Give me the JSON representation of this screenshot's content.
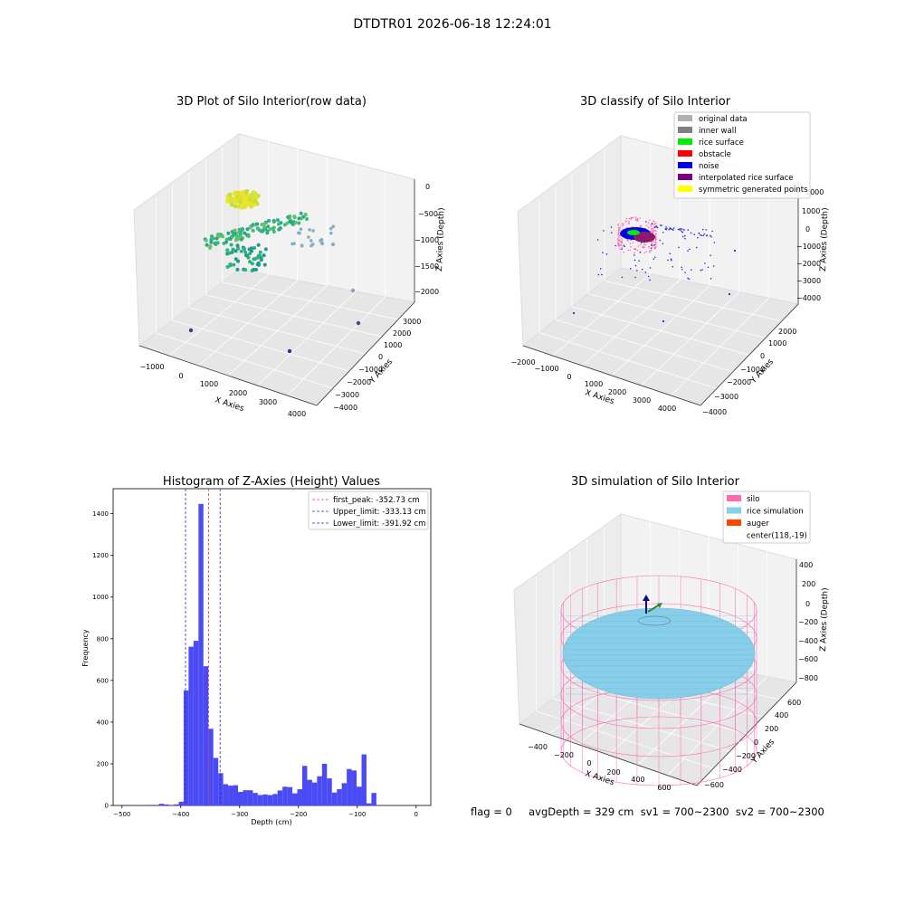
{
  "figure_title": "DTDTR01 2026-06-18 12:24:01",
  "footer_text": "flag = 0     avgDepth = 329 cm  sv1 = 700~2300  sv2 = 700~2300",
  "colors": {
    "hist_bar": "#4b4bf5",
    "first_peak": "#e53b3b",
    "limits": "#2a2ad0",
    "silo": "#ff69b4",
    "rice_simulation": "#87ceeb",
    "auger": "#ff4500"
  },
  "chart_data": [
    {
      "type": "scatter3d",
      "title": "3D Plot of Silo Interior(row data)",
      "xlabel": "X Axies",
      "ylabel": "Y Axies",
      "zlabel": "Z Axies (Depth)",
      "x_ticks": [
        "−1000",
        "0",
        "1000",
        "2000",
        "3000",
        "4000"
      ],
      "y_ticks": [
        "−4000",
        "−3000",
        "−2000",
        "−1000",
        "0",
        "1000",
        "2000",
        "3000"
      ],
      "z_ticks": [
        "0",
        "−500",
        "−1000",
        "−1500",
        "−2000"
      ],
      "colormap": "viridis"
    },
    {
      "type": "scatter3d",
      "title": "3D classify of Silo Interior",
      "xlabel": "X Axies",
      "ylabel": "Y Axies",
      "zlabel": "Z Axies (Depth)",
      "x_ticks": [
        "−2000",
        "−1000",
        "0",
        "1000",
        "2000",
        "3000",
        "4000"
      ],
      "y_ticks": [
        "−4000",
        "−3000",
        "−2000",
        "−1000",
        "0",
        "1000",
        "2000"
      ],
      "z_ticks": [
        "2000",
        "1000",
        "0",
        "−1000",
        "−2000",
        "−3000",
        "−4000"
      ],
      "legend": [
        {
          "label": "original data",
          "color": "#b0b0b0"
        },
        {
          "label": "inner wall",
          "color": "#808080"
        },
        {
          "label": "rice surface",
          "color": "#00ee00"
        },
        {
          "label": "obstacle",
          "color": "#ff0000"
        },
        {
          "label": "noise",
          "color": "#0000ee"
        },
        {
          "label": "interpolated rice surface",
          "color": "#800080"
        },
        {
          "label": "symmetric generated points",
          "color": "#ffff00"
        }
      ],
      "legend_position": "top-right"
    },
    {
      "type": "bar",
      "title": "Histogram of Z-Axies (Height) Values",
      "xlabel": "Depth (cm)",
      "ylabel": "Frequency",
      "xlim": [
        -515,
        25
      ],
      "ylim": [
        0,
        1520
      ],
      "x_ticks": [
        -500,
        -400,
        -300,
        -200,
        -100,
        0
      ],
      "x_tick_labels": [
        "−500",
        "−400",
        "−300",
        "−200",
        "−100",
        "0"
      ],
      "y_ticks": [
        0,
        200,
        400,
        600,
        800,
        1000,
        1200,
        1400
      ],
      "bin_width": 8.4,
      "bin_start": -490.5,
      "bins": [
        {
          "x": -490.5,
          "y": 3
        },
        {
          "x": -448.5,
          "y": 3
        },
        {
          "x": -431.7,
          "y": 8
        },
        {
          "x": -423.3,
          "y": 5
        },
        {
          "x": -406.5,
          "y": 5
        },
        {
          "x": -398.1,
          "y": 18
        },
        {
          "x": -389.7,
          "y": 552
        },
        {
          "x": -381.3,
          "y": 762
        },
        {
          "x": -372.9,
          "y": 790
        },
        {
          "x": -364.5,
          "y": 1447
        },
        {
          "x": -356.1,
          "y": 668
        },
        {
          "x": -347.7,
          "y": 368
        },
        {
          "x": -339.3,
          "y": 228
        },
        {
          "x": -330.9,
          "y": 155
        },
        {
          "x": -322.5,
          "y": 102
        },
        {
          "x": -314.1,
          "y": 95
        },
        {
          "x": -305.7,
          "y": 97
        },
        {
          "x": -297.3,
          "y": 65
        },
        {
          "x": -288.9,
          "y": 73
        },
        {
          "x": -280.5,
          "y": 73
        },
        {
          "x": -272.1,
          "y": 60
        },
        {
          "x": -263.7,
          "y": 50
        },
        {
          "x": -255.3,
          "y": 53
        },
        {
          "x": -246.9,
          "y": 50
        },
        {
          "x": -238.5,
          "y": 55
        },
        {
          "x": -230.1,
          "y": 72
        },
        {
          "x": -221.7,
          "y": 90
        },
        {
          "x": -213.3,
          "y": 88
        },
        {
          "x": -204.9,
          "y": 58
        },
        {
          "x": -196.5,
          "y": 78
        },
        {
          "x": -188.1,
          "y": 190
        },
        {
          "x": -179.7,
          "y": 123
        },
        {
          "x": -171.3,
          "y": 110
        },
        {
          "x": -162.9,
          "y": 140
        },
        {
          "x": -154.5,
          "y": 200
        },
        {
          "x": -146.1,
          "y": 130
        },
        {
          "x": -137.7,
          "y": 62
        },
        {
          "x": -129.3,
          "y": 78
        },
        {
          "x": -120.9,
          "y": 107
        },
        {
          "x": -112.5,
          "y": 175
        },
        {
          "x": -104.1,
          "y": 168
        },
        {
          "x": -95.7,
          "y": 90
        },
        {
          "x": -87.3,
          "y": 245
        },
        {
          "x": -78.9,
          "y": 10
        },
        {
          "x": -70.5,
          "y": 60
        }
      ],
      "bin_offset_to_axis": -5.4,
      "lines": [
        {
          "label": "first_peak: -352.73 cm",
          "value": -352.73,
          "style": "dashed",
          "color": "#e53b3b"
        },
        {
          "label": "Upper_limit: -333.13 cm",
          "value": -333.13,
          "style": "dashed",
          "color": "#2a2ad0"
        },
        {
          "label": "Lower_limit: -391.92 cm",
          "value": -391.92,
          "style": "dashed",
          "color": "#2a2ad0"
        }
      ],
      "legend_position": "top-right"
    },
    {
      "type": "surface3d",
      "title": "3D simulation of Silo Interior",
      "xlabel": "X Axies",
      "ylabel": "Y Axies",
      "zlabel": "Z Axies (Depth)",
      "x_ticks": [
        "−400",
        "−200",
        "0",
        "200",
        "400",
        "600"
      ],
      "y_ticks": [
        "−600",
        "−400",
        "−200",
        "0",
        "200",
        "400",
        "600"
      ],
      "z_ticks": [
        "400",
        "200",
        "0",
        "−200",
        "−400",
        "−600",
        "−800"
      ],
      "legend": [
        {
          "label": "silo",
          "color": "#ff69b4"
        },
        {
          "label": "rice simulation",
          "color": "#87ceeb"
        },
        {
          "label": "auger",
          "color": "#ff4500"
        },
        {
          "label": "center(118,-19)",
          "color": ""
        }
      ],
      "legend_position": "top-right"
    }
  ]
}
